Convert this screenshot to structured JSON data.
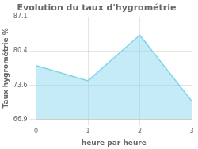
{
  "chart_data": {
    "type": "area",
    "title": "Evolution du taux d'hygrométrie",
    "xlabel": "heure par heure",
    "ylabel": "Taux hygrométrie %",
    "x": [
      0,
      1,
      2,
      3
    ],
    "values": [
      77.5,
      74.5,
      83.5,
      70.5
    ],
    "xlim": [
      0,
      3
    ],
    "ylim": [
      66.9,
      87.1
    ],
    "xticks": [
      0,
      1,
      2,
      3
    ],
    "yticks": [
      66.9,
      73.6,
      80.4,
      87.1
    ],
    "grid": true,
    "color": "#7fd4ea"
  }
}
